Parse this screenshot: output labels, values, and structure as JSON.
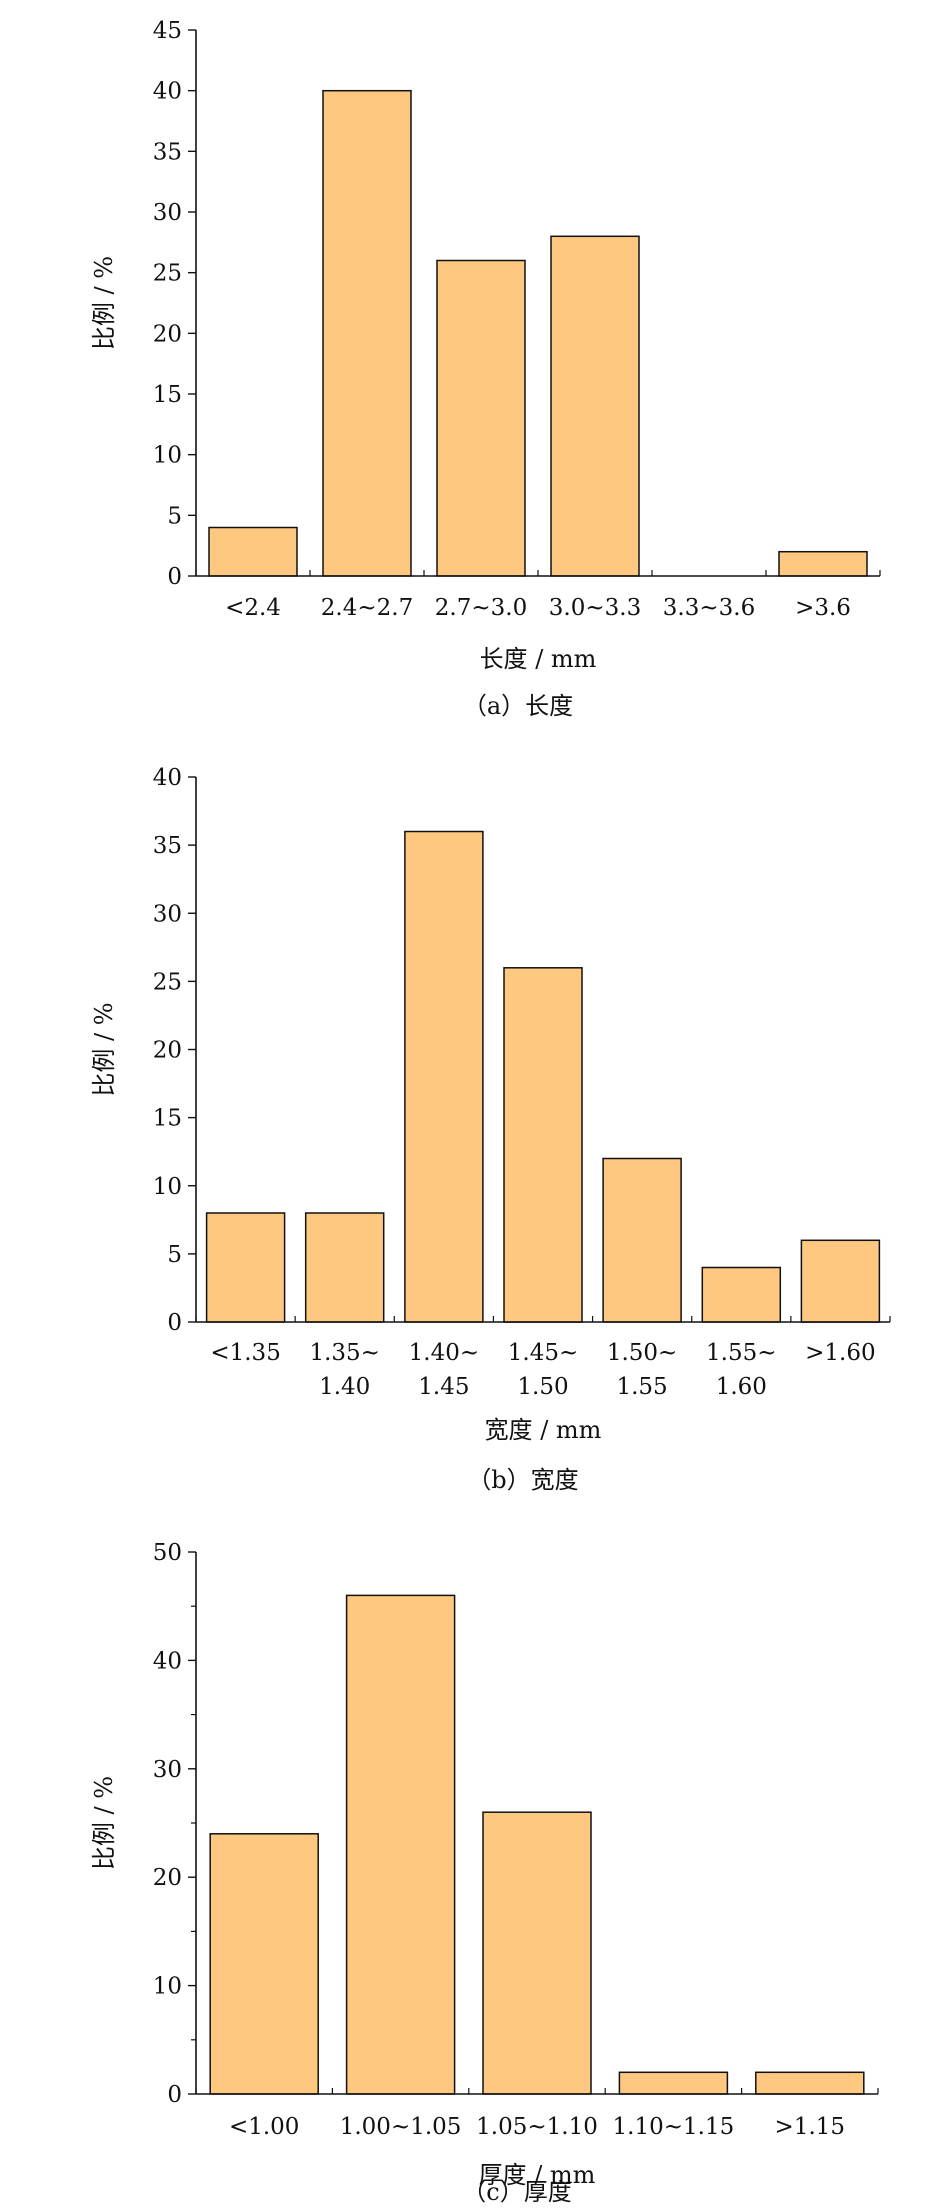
{
  "colors": {
    "bar_fill": "#FFC880",
    "bar_stroke": "#111111",
    "axis": "#111111"
  },
  "chart_data": [
    {
      "type": "bar",
      "caption": "（a）长度",
      "xlabel": "长度 / mm",
      "ylabel": "比例 / %",
      "ylim": [
        0,
        45
      ],
      "yticks": [
        0,
        5,
        10,
        15,
        20,
        25,
        30,
        35,
        40,
        45
      ],
      "categories": [
        [
          "<2.4"
        ],
        [
          "2.4~2.7"
        ],
        [
          "2.7~3.0"
        ],
        [
          "3.0~3.3"
        ],
        [
          "3.3~3.6"
        ],
        [
          ">3.6"
        ]
      ],
      "values": [
        4,
        40,
        26,
        28,
        0,
        2
      ],
      "grid": false,
      "legend": "none"
    },
    {
      "type": "bar",
      "caption": "（b）宽度",
      "xlabel": "宽度 / mm",
      "ylabel": "比例 / %",
      "ylim": [
        0,
        40
      ],
      "yticks": [
        0,
        5,
        10,
        15,
        20,
        25,
        30,
        35,
        40
      ],
      "categories": [
        [
          "<1.35"
        ],
        [
          "1.35~",
          "1.40"
        ],
        [
          "1.40~",
          "1.45"
        ],
        [
          "1.45~",
          "1.50"
        ],
        [
          "1.50~",
          "1.55"
        ],
        [
          "1.55~",
          "1.60"
        ],
        [
          ">1.60"
        ]
      ],
      "values": [
        8,
        8,
        36,
        26,
        12,
        4,
        6
      ],
      "grid": false,
      "legend": "none"
    },
    {
      "type": "bar",
      "caption": "（c）厚度",
      "xlabel": "厚度 / mm",
      "ylabel": "比例 / %",
      "ylim": [
        0,
        50
      ],
      "yticks": [
        0,
        10,
        20,
        30,
        40,
        50
      ],
      "categories": [
        [
          "<1.00"
        ],
        [
          "1.00~1.05"
        ],
        [
          "1.05~1.10"
        ],
        [
          "1.10~1.15"
        ],
        [
          ">1.15"
        ]
      ],
      "values": [
        24,
        46,
        26,
        2,
        2
      ],
      "grid": false,
      "legend": "none"
    }
  ]
}
